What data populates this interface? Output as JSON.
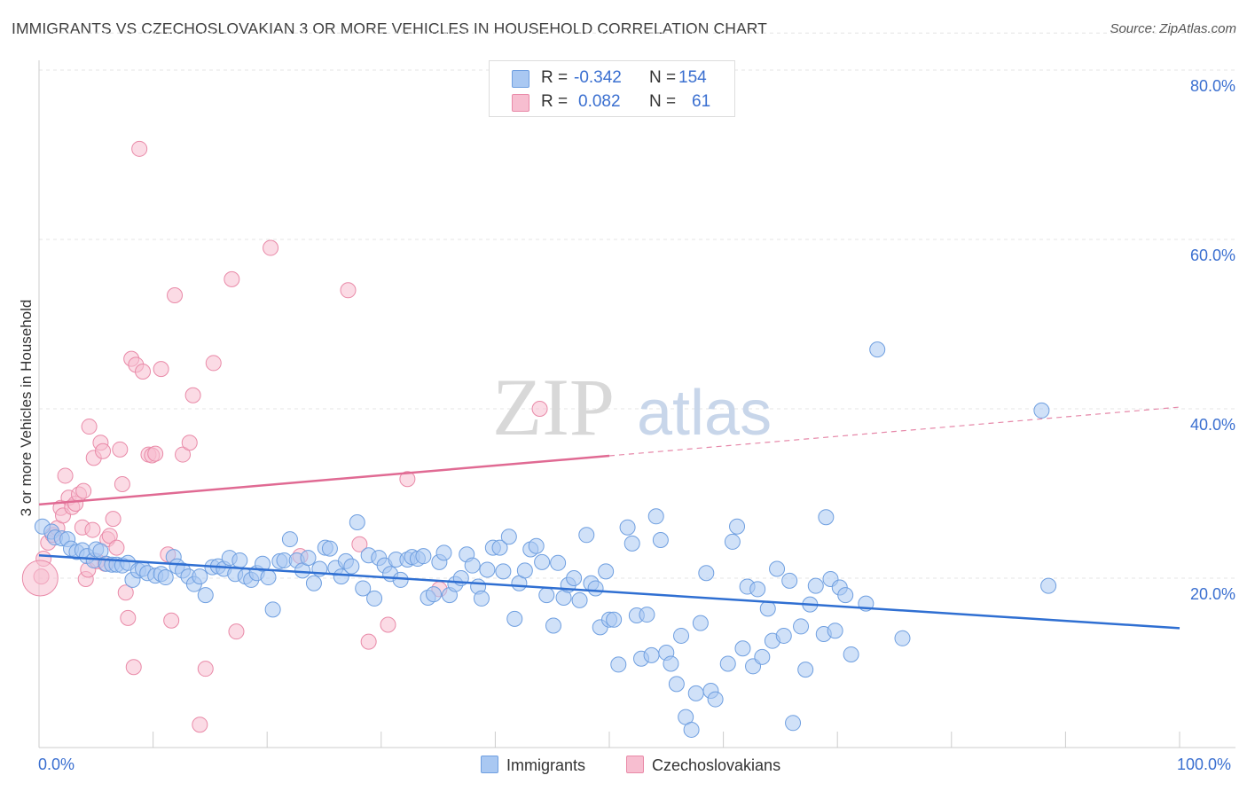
{
  "title": "IMMIGRANTS VS CZECHOSLOVAKIAN 3 OR MORE VEHICLES IN HOUSEHOLD CORRELATION CHART",
  "source": "Source: ZipAtlas.com",
  "watermark": {
    "zip": "ZIP",
    "atlas": "atlas"
  },
  "legend_stats": [
    {
      "r_label": "R =",
      "r_value": "-0.342",
      "n_label": "N =",
      "n_value": "154",
      "color": "#a9c8f2",
      "stroke": "#6f9fe0"
    },
    {
      "r_label": "R =",
      "r_value": "0.082",
      "n_label": "N =",
      "n_value": "61",
      "color": "#f7bed0",
      "stroke": "#e98aa8"
    }
  ],
  "chart_data": {
    "type": "scatter",
    "title": "IMMIGRANTS VS CZECHOSLOVAKIAN 3 OR MORE VEHICLES IN HOUSEHOLD CORRELATION CHART",
    "xlabel": "",
    "ylabel": "3 or more Vehicles in Household",
    "xlim": [
      0,
      100
    ],
    "ylim": [
      0,
      85
    ],
    "x_tick_labels": [
      "0.0%",
      "100.0%"
    ],
    "y_ticks": [
      20,
      40,
      60,
      80
    ],
    "y_tick_labels": [
      "20.0%",
      "40.0%",
      "60.0%",
      "80.0%"
    ],
    "grid": true,
    "legend_position": "bottom-center",
    "series": [
      {
        "name": "Immigrants",
        "color": "#6f9fe0",
        "fill": "#a9c8f2",
        "line_color": "#2f6fd2",
        "trend": {
          "x": [
            0,
            100
          ],
          "y": [
            22.7,
            14.1
          ],
          "dashed_from": null
        },
        "points": [
          [
            0.3,
            26.1
          ],
          [
            1.1,
            25.5
          ],
          [
            1.4,
            24.8
          ],
          [
            2.0,
            24.7
          ],
          [
            2.5,
            24.6
          ],
          [
            2.8,
            23.5
          ],
          [
            3.3,
            23.1
          ],
          [
            3.8,
            23.3
          ],
          [
            4.2,
            22.6
          ],
          [
            4.8,
            22.1
          ],
          [
            5.0,
            23.4
          ],
          [
            5.4,
            23.2
          ],
          [
            5.9,
            21.7
          ],
          [
            6.4,
            21.6
          ],
          [
            6.8,
            21.6
          ],
          [
            7.3,
            21.5
          ],
          [
            7.8,
            21.8
          ],
          [
            8.2,
            19.8
          ],
          [
            8.7,
            20.9
          ],
          [
            9.1,
            21.1
          ],
          [
            9.5,
            20.6
          ],
          [
            10.2,
            20.3
          ],
          [
            10.7,
            20.5
          ],
          [
            11.1,
            20.1
          ],
          [
            11.8,
            22.5
          ],
          [
            12.1,
            21.4
          ],
          [
            12.6,
            20.9
          ],
          [
            13.1,
            20.2
          ],
          [
            13.6,
            19.3
          ],
          [
            14.1,
            20.2
          ],
          [
            14.6,
            18.0
          ],
          [
            15.2,
            21.3
          ],
          [
            15.7,
            21.4
          ],
          [
            16.2,
            21.1
          ],
          [
            16.7,
            22.4
          ],
          [
            17.2,
            20.5
          ],
          [
            17.6,
            22.1
          ],
          [
            18.1,
            20.2
          ],
          [
            18.6,
            19.8
          ],
          [
            19.1,
            20.6
          ],
          [
            19.6,
            21.7
          ],
          [
            20.1,
            20.1
          ],
          [
            20.5,
            16.3
          ],
          [
            21.1,
            22.0
          ],
          [
            21.5,
            22.1
          ],
          [
            22.0,
            24.6
          ],
          [
            22.6,
            22.1
          ],
          [
            23.1,
            20.9
          ],
          [
            23.6,
            22.4
          ],
          [
            24.1,
            19.4
          ],
          [
            24.6,
            21.1
          ],
          [
            25.1,
            23.6
          ],
          [
            25.5,
            23.5
          ],
          [
            26.0,
            21.2
          ],
          [
            26.5,
            20.2
          ],
          [
            26.9,
            22.0
          ],
          [
            27.4,
            21.4
          ],
          [
            27.9,
            26.6
          ],
          [
            28.4,
            18.8
          ],
          [
            28.9,
            22.7
          ],
          [
            29.4,
            17.6
          ],
          [
            29.8,
            22.4
          ],
          [
            30.3,
            21.5
          ],
          [
            30.8,
            20.5
          ],
          [
            31.3,
            22.2
          ],
          [
            31.7,
            19.8
          ],
          [
            32.3,
            22.2
          ],
          [
            32.7,
            22.5
          ],
          [
            33.2,
            22.3
          ],
          [
            33.7,
            22.6
          ],
          [
            34.1,
            17.7
          ],
          [
            34.6,
            18.1
          ],
          [
            35.1,
            21.9
          ],
          [
            35.5,
            23.0
          ],
          [
            36.0,
            18.0
          ],
          [
            36.5,
            19.3
          ],
          [
            37.0,
            20.0
          ],
          [
            37.5,
            22.8
          ],
          [
            38.0,
            21.5
          ],
          [
            38.5,
            19.0
          ],
          [
            38.8,
            17.6
          ],
          [
            39.3,
            21.0
          ],
          [
            39.8,
            23.6
          ],
          [
            40.4,
            23.6
          ],
          [
            40.7,
            20.8
          ],
          [
            41.2,
            24.9
          ],
          [
            41.7,
            15.2
          ],
          [
            42.1,
            19.4
          ],
          [
            42.6,
            20.9
          ],
          [
            43.1,
            23.4
          ],
          [
            43.6,
            23.8
          ],
          [
            44.1,
            21.9
          ],
          [
            44.5,
            18.0
          ],
          [
            45.1,
            14.4
          ],
          [
            45.5,
            21.8
          ],
          [
            46.0,
            17.7
          ],
          [
            46.4,
            19.2
          ],
          [
            46.9,
            20.0
          ],
          [
            47.4,
            17.4
          ],
          [
            48.0,
            25.1
          ],
          [
            48.4,
            19.4
          ],
          [
            48.8,
            18.8
          ],
          [
            49.2,
            14.2
          ],
          [
            49.7,
            20.8
          ],
          [
            50.0,
            15.1
          ],
          [
            50.4,
            15.1
          ],
          [
            50.8,
            9.8
          ],
          [
            51.6,
            26.0
          ],
          [
            52.0,
            24.1
          ],
          [
            52.4,
            15.6
          ],
          [
            52.8,
            10.5
          ],
          [
            53.3,
            15.7
          ],
          [
            53.7,
            10.9
          ],
          [
            54.1,
            27.3
          ],
          [
            54.5,
            24.5
          ],
          [
            55.0,
            11.2
          ],
          [
            55.4,
            9.9
          ],
          [
            55.9,
            7.5
          ],
          [
            56.3,
            13.2
          ],
          [
            56.7,
            3.6
          ],
          [
            57.2,
            2.1
          ],
          [
            57.6,
            6.4
          ],
          [
            58.0,
            14.7
          ],
          [
            58.5,
            20.6
          ],
          [
            58.9,
            6.7
          ],
          [
            59.3,
            5.7
          ],
          [
            60.4,
            9.9
          ],
          [
            60.8,
            24.3
          ],
          [
            61.2,
            26.1
          ],
          [
            61.7,
            11.7
          ],
          [
            62.1,
            19.0
          ],
          [
            62.6,
            9.6
          ],
          [
            63.0,
            18.7
          ],
          [
            63.4,
            10.7
          ],
          [
            63.9,
            16.4
          ],
          [
            64.3,
            12.6
          ],
          [
            64.7,
            21.1
          ],
          [
            65.3,
            13.2
          ],
          [
            65.8,
            19.7
          ],
          [
            66.1,
            2.9
          ],
          [
            66.8,
            14.3
          ],
          [
            67.2,
            9.2
          ],
          [
            67.6,
            16.9
          ],
          [
            68.1,
            19.1
          ],
          [
            68.8,
            13.4
          ],
          [
            69.0,
            27.2
          ],
          [
            69.4,
            19.9
          ],
          [
            69.8,
            13.8
          ],
          [
            70.2,
            18.9
          ],
          [
            70.7,
            18.0
          ],
          [
            71.2,
            11.0
          ],
          [
            72.5,
            17.0
          ],
          [
            73.5,
            47.0
          ],
          [
            75.7,
            12.9
          ],
          [
            87.9,
            39.8
          ],
          [
            88.5,
            19.1
          ]
        ]
      },
      {
        "name": "Czechoslovakians",
        "color": "#e98aa8",
        "fill": "#f7bed0",
        "line_color": "#e06a93",
        "trend": {
          "x": [
            0,
            100
          ],
          "y": [
            28.7,
            40.2
          ],
          "dashed_from": 50
        },
        "points": [
          [
            0.2,
            20.2
          ],
          [
            0.4,
            22.3
          ],
          [
            0.8,
            24.2
          ],
          [
            1.2,
            25.1
          ],
          [
            1.6,
            25.9
          ],
          [
            1.9,
            28.3
          ],
          [
            2.1,
            27.4
          ],
          [
            2.3,
            32.1
          ],
          [
            2.6,
            29.5
          ],
          [
            2.9,
            28.4
          ],
          [
            3.2,
            28.8
          ],
          [
            3.5,
            29.9
          ],
          [
            3.8,
            26.0
          ],
          [
            3.9,
            30.3
          ],
          [
            4.1,
            19.9
          ],
          [
            4.3,
            21.0
          ],
          [
            4.4,
            37.9
          ],
          [
            4.7,
            25.7
          ],
          [
            4.8,
            34.2
          ],
          [
            5.1,
            22.0
          ],
          [
            5.4,
            36.0
          ],
          [
            5.6,
            35.0
          ],
          [
            5.8,
            21.7
          ],
          [
            6.0,
            24.6
          ],
          [
            6.2,
            25.0
          ],
          [
            6.5,
            27.0
          ],
          [
            6.8,
            23.6
          ],
          [
            7.1,
            35.2
          ],
          [
            7.3,
            31.1
          ],
          [
            7.6,
            18.3
          ],
          [
            7.8,
            15.3
          ],
          [
            8.1,
            45.9
          ],
          [
            8.3,
            9.5
          ],
          [
            8.5,
            45.2
          ],
          [
            8.8,
            70.7
          ],
          [
            9.1,
            44.4
          ],
          [
            9.6,
            34.6
          ],
          [
            9.9,
            34.5
          ],
          [
            10.2,
            34.7
          ],
          [
            10.7,
            44.7
          ],
          [
            11.3,
            22.8
          ],
          [
            11.6,
            15.0
          ],
          [
            11.9,
            53.4
          ],
          [
            12.6,
            34.6
          ],
          [
            13.2,
            36.0
          ],
          [
            13.5,
            41.6
          ],
          [
            14.1,
            2.7
          ],
          [
            14.6,
            9.3
          ],
          [
            15.3,
            45.4
          ],
          [
            16.9,
            55.3
          ],
          [
            17.3,
            13.7
          ],
          [
            20.3,
            59.0
          ],
          [
            22.9,
            22.6
          ],
          [
            27.1,
            54.0
          ],
          [
            28.1,
            24.0
          ],
          [
            28.9,
            12.5
          ],
          [
            30.6,
            14.5
          ],
          [
            32.3,
            31.7
          ],
          [
            35.1,
            18.7
          ],
          [
            43.9,
            40.0
          ],
          [
            0.1,
            20.0
          ]
        ]
      }
    ]
  },
  "axis_labels": {
    "x_left": "0.0%",
    "x_right": "100.0%",
    "y_axis": "3 or more Vehicles in Household"
  }
}
